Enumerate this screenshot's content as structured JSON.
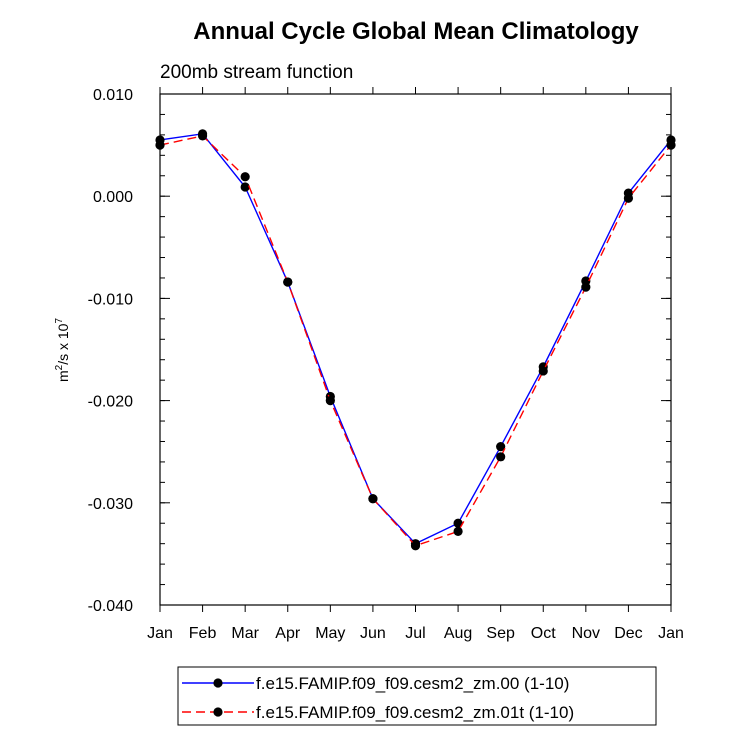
{
  "chart_data": {
    "type": "line",
    "title": "Annual Cycle Global Mean Climatology",
    "subtitle": "200mb stream function",
    "ylabel": {
      "prefix": "m",
      "sup1": "2",
      "mid": "/s x 10",
      "sup2": "7"
    },
    "xlabel": "",
    "ylim": [
      -0.04,
      0.01
    ],
    "yticks": [
      0.01,
      0.0,
      -0.01,
      -0.02,
      -0.03,
      -0.04
    ],
    "ytick_labels": [
      "0.010",
      "0.000",
      "-0.010",
      "-0.020",
      "-0.030",
      "-0.040"
    ],
    "categories": [
      "Jan",
      "Feb",
      "Mar",
      "Apr",
      "May",
      "Jun",
      "Jul",
      "Aug",
      "Sep",
      "Oct",
      "Nov",
      "Dec",
      "Jan"
    ],
    "series": [
      {
        "name": "f.e15.FAMIP.f09_f09.cesm2_zm.00 (1-10)",
        "color": "#0000ff",
        "dash": "solid",
        "values": [
          0.0055,
          0.0061,
          0.0009,
          -0.0084,
          -0.0196,
          -0.0296,
          -0.034,
          -0.032,
          -0.0245,
          -0.0167,
          -0.0083,
          0.0003,
          0.0055
        ]
      },
      {
        "name": "f.e15.FAMIP.f09_f09.cesm2_zm.01t (1-10)",
        "color": "#ff0000",
        "dash": "dashed",
        "values": [
          0.005,
          0.0059,
          0.0019,
          -0.0084,
          -0.02,
          -0.0296,
          -0.0342,
          -0.0328,
          -0.0255,
          -0.0171,
          -0.0089,
          -0.0002,
          0.005
        ]
      }
    ],
    "legend_position": "bottom-center"
  }
}
